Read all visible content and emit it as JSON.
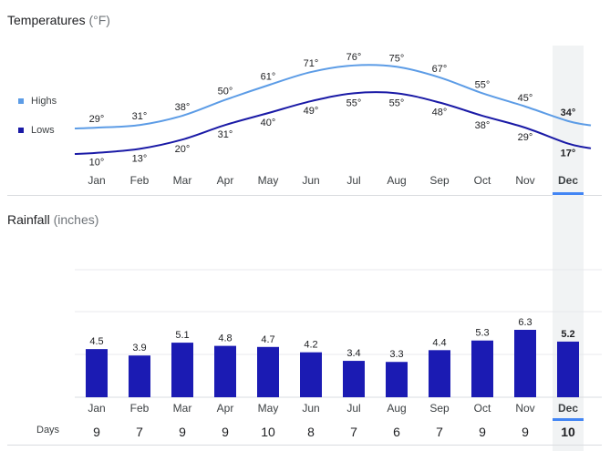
{
  "temperatures": {
    "title": "Temperatures",
    "unit": "(°F)",
    "legend": {
      "highs": "Highs",
      "lows": "Lows"
    },
    "colors": {
      "highs": "#5c9ce6",
      "lows": "#1a1aa6"
    }
  },
  "rainfall": {
    "title": "Rainfall",
    "unit": "(inches)",
    "bar_color": "#1b1bb3"
  },
  "days": {
    "label": "Days"
  },
  "selected_month": "Dec",
  "chart_data": [
    {
      "type": "line",
      "title": "Temperatures (°F)",
      "categories": [
        "Jan",
        "Feb",
        "Mar",
        "Apr",
        "May",
        "Jun",
        "Jul",
        "Aug",
        "Sep",
        "Oct",
        "Nov",
        "Dec"
      ],
      "series": [
        {
          "name": "Highs",
          "values": [
            29,
            31,
            38,
            50,
            61,
            71,
            76,
            75,
            67,
            55,
            45,
            34
          ],
          "labels": [
            "29°",
            "31°",
            "38°",
            "50°",
            "61°",
            "71°",
            "76°",
            "75°",
            "67°",
            "55°",
            "45°",
            "34°"
          ]
        },
        {
          "name": "Lows",
          "values": [
            10,
            13,
            20,
            31,
            40,
            49,
            55,
            55,
            48,
            38,
            29,
            17
          ],
          "labels": [
            "10°",
            "13°",
            "20°",
            "31°",
            "40°",
            "49°",
            "55°",
            "55°",
            "48°",
            "38°",
            "29°",
            "17°"
          ]
        }
      ],
      "ylim": [
        5,
        80
      ],
      "legend": "left"
    },
    {
      "type": "bar",
      "title": "Rainfall (inches)",
      "categories": [
        "Jan",
        "Feb",
        "Mar",
        "Apr",
        "May",
        "Jun",
        "Jul",
        "Aug",
        "Sep",
        "Oct",
        "Nov",
        "Dec"
      ],
      "values": [
        4.5,
        3.9,
        5.1,
        4.8,
        4.7,
        4.2,
        3.4,
        3.3,
        4.4,
        5.3,
        6.3,
        5.2
      ],
      "labels": [
        "4.5",
        "3.9",
        "5.1",
        "4.8",
        "4.7",
        "4.2",
        "3.4",
        "3.3",
        "4.4",
        "5.3",
        "6.3",
        "5.2"
      ],
      "ylim": [
        0,
        14
      ],
      "grid": true
    },
    {
      "type": "table",
      "title": "Days",
      "categories": [
        "Jan",
        "Feb",
        "Mar",
        "Apr",
        "May",
        "Jun",
        "Jul",
        "Aug",
        "Sep",
        "Oct",
        "Nov",
        "Dec"
      ],
      "values": [
        9,
        7,
        9,
        9,
        10,
        8,
        7,
        6,
        7,
        9,
        9,
        10
      ],
      "labels": [
        "9",
        "7",
        "9",
        "9",
        "10",
        "8",
        "7",
        "6",
        "7",
        "9",
        "9",
        "10"
      ]
    }
  ]
}
